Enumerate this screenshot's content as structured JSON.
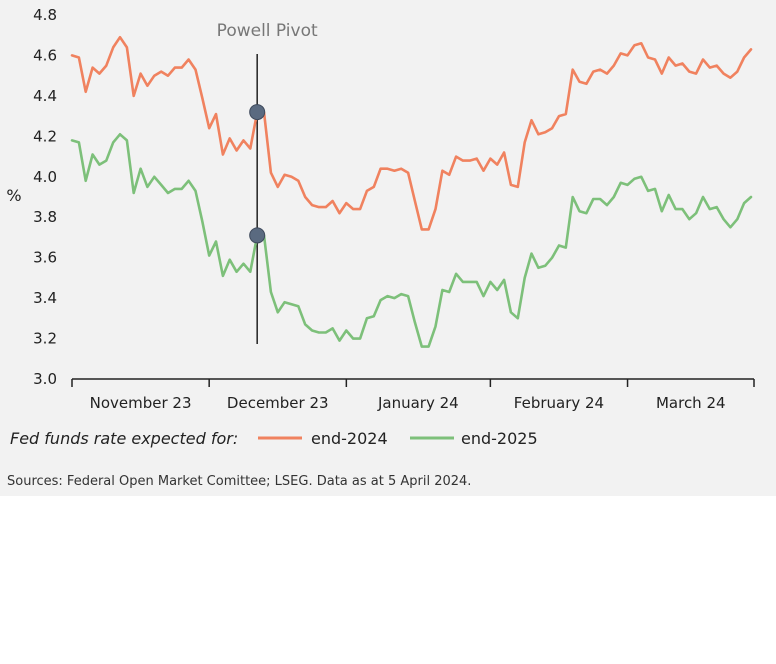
{
  "chart_data": {
    "type": "line",
    "ylabel": "%",
    "ylim": [
      3.0,
      4.8
    ],
    "yticks": [
      "3.0",
      "3.2",
      "3.4",
      "3.6",
      "3.8",
      "4.0",
      "4.2",
      "4.4",
      "4.6",
      "4.8"
    ],
    "xlim": [
      0,
      99
    ],
    "month_ticks": [
      0,
      20,
      40,
      61,
      81,
      100
    ],
    "month_labels": [
      "November 23",
      "December 23",
      "January 24",
      "February 24",
      "March 24"
    ],
    "annotation": {
      "label": "Powell Pivot",
      "x": 27
    },
    "markers": [
      {
        "series": "end-2024",
        "x": 27,
        "y": 4.32
      },
      {
        "series": "end-2025",
        "x": 27,
        "y": 3.71
      }
    ],
    "legend_lead": "Fed funds rate expected for:",
    "series": [
      {
        "name": "end-2024",
        "color": "#F0825F",
        "x": [
          0,
          1,
          2,
          3,
          4,
          5,
          6,
          7,
          8,
          9,
          10,
          11,
          12,
          13,
          14,
          15,
          16,
          17,
          18,
          19,
          20,
          21,
          22,
          23,
          24,
          25,
          26,
          27,
          28,
          29,
          30,
          31,
          32,
          33,
          34,
          35,
          36,
          37,
          38,
          39,
          40,
          41,
          42,
          43,
          44,
          45,
          46,
          47,
          48,
          49,
          50,
          51,
          52,
          53,
          54,
          55,
          56,
          57,
          58,
          59,
          60,
          61,
          62,
          63,
          64,
          65,
          66,
          67,
          68,
          69,
          70,
          71,
          72,
          73,
          74,
          75,
          76,
          77,
          78,
          79,
          80,
          81,
          82,
          83,
          84,
          85,
          86,
          87,
          88,
          89,
          90,
          91,
          92,
          93,
          94,
          95,
          96,
          97,
          98,
          99
        ],
        "values": [
          4.6,
          4.59,
          4.42,
          4.54,
          4.51,
          4.55,
          4.64,
          4.69,
          4.64,
          4.4,
          4.51,
          4.45,
          4.5,
          4.52,
          4.5,
          4.54,
          4.54,
          4.58,
          4.53,
          4.39,
          4.24,
          4.31,
          4.11,
          4.19,
          4.13,
          4.18,
          4.14,
          4.32,
          4.32,
          4.02,
          3.95,
          4.01,
          4.0,
          3.98,
          3.9,
          3.86,
          3.85,
          3.85,
          3.88,
          3.82,
          3.87,
          3.84,
          3.84,
          3.93,
          3.95,
          4.04,
          4.04,
          4.03,
          4.04,
          4.02,
          3.88,
          3.74,
          3.74,
          3.84,
          4.03,
          4.01,
          4.1,
          4.08,
          4.08,
          4.09,
          4.03,
          4.09,
          4.06,
          4.12,
          3.96,
          3.95,
          4.17,
          4.28,
          4.21,
          4.22,
          4.24,
          4.3,
          4.31,
          4.53,
          4.47,
          4.46,
          4.52,
          4.53,
          4.51,
          4.55,
          4.61,
          4.6,
          4.65,
          4.66,
          4.59,
          4.58,
          4.51,
          4.59,
          4.55,
          4.56,
          4.52,
          4.51,
          4.58,
          4.54,
          4.55,
          4.51,
          4.49,
          4.52,
          4.59,
          4.63
        ]
      },
      {
        "name": "end-2025",
        "color": "#7DC07A",
        "x": [
          0,
          1,
          2,
          3,
          4,
          5,
          6,
          7,
          8,
          9,
          10,
          11,
          12,
          13,
          14,
          15,
          16,
          17,
          18,
          19,
          20,
          21,
          22,
          23,
          24,
          25,
          26,
          27,
          28,
          29,
          30,
          31,
          32,
          33,
          34,
          35,
          36,
          37,
          38,
          39,
          40,
          41,
          42,
          43,
          44,
          45,
          46,
          47,
          48,
          49,
          50,
          51,
          52,
          53,
          54,
          55,
          56,
          57,
          58,
          59,
          60,
          61,
          62,
          63,
          64,
          65,
          66,
          67,
          68,
          69,
          70,
          71,
          72,
          73,
          74,
          75,
          76,
          77,
          78,
          79,
          80,
          81,
          82,
          83,
          84,
          85,
          86,
          87,
          88,
          89,
          90,
          91,
          92,
          93,
          94,
          95,
          96,
          97,
          98,
          99
        ],
        "values": [
          4.18,
          4.17,
          3.98,
          4.11,
          4.06,
          4.08,
          4.17,
          4.21,
          4.18,
          3.92,
          4.04,
          3.95,
          4.0,
          3.96,
          3.92,
          3.94,
          3.94,
          3.98,
          3.93,
          3.78,
          3.61,
          3.68,
          3.51,
          3.59,
          3.53,
          3.57,
          3.53,
          3.71,
          3.71,
          3.43,
          3.33,
          3.38,
          3.37,
          3.36,
          3.27,
          3.24,
          3.23,
          3.23,
          3.25,
          3.19,
          3.24,
          3.2,
          3.2,
          3.3,
          3.31,
          3.39,
          3.41,
          3.4,
          3.42,
          3.41,
          3.28,
          3.16,
          3.16,
          3.26,
          3.44,
          3.43,
          3.52,
          3.48,
          3.48,
          3.48,
          3.41,
          3.48,
          3.44,
          3.49,
          3.33,
          3.3,
          3.5,
          3.62,
          3.55,
          3.56,
          3.6,
          3.66,
          3.65,
          3.9,
          3.83,
          3.82,
          3.89,
          3.89,
          3.86,
          3.9,
          3.97,
          3.96,
          3.99,
          4.0,
          3.93,
          3.94,
          3.83,
          3.91,
          3.84,
          3.84,
          3.79,
          3.82,
          3.9,
          3.84,
          3.85,
          3.79,
          3.75,
          3.79,
          3.87,
          3.9
        ]
      }
    ],
    "source": "Sources: Federal Open Market Comittee; LSEG. Data as at 5 April 2024."
  }
}
